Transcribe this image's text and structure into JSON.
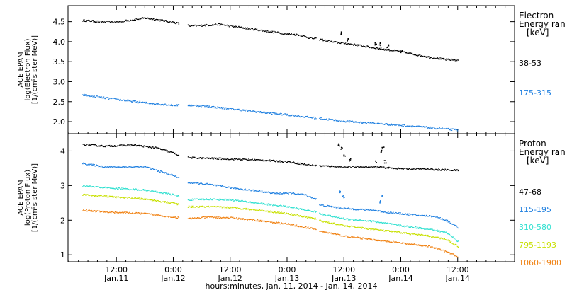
{
  "chart_data": [
    {
      "type": "scatter",
      "panel": "electron",
      "ylabel": [
        "ACE EPAM",
        "log(Electron Flux)",
        "[1/(cm²s ster MeV)]"
      ],
      "ylim": [
        1.7,
        4.9
      ],
      "yticks": [
        2.0,
        2.5,
        3.0,
        3.5,
        4.0,
        4.5
      ],
      "legend_title": [
        "Electron",
        "Energy ran",
        "[keV]"
      ],
      "series": [
        {
          "name": "38-53",
          "color": "#000000",
          "points": [
            [
              -0.6,
              4.54
            ],
            [
              -0.2,
              4.5
            ],
            [
              0,
              4.5
            ],
            [
              0.5,
              4.6
            ],
            [
              0.75,
              4.55
            ],
            [
              1.0,
              4.49
            ],
            [
              1.3,
              4.4
            ],
            [
              1.55,
              4.42
            ],
            [
              1.8,
              4.44
            ],
            [
              2.2,
              4.36
            ],
            [
              2.6,
              4.28
            ],
            [
              3.0,
              4.2
            ],
            [
              3.2,
              4.18
            ],
            [
              3.4,
              4.1
            ],
            [
              3.6,
              4.06
            ],
            [
              3.8,
              4.0
            ],
            [
              4.0,
              3.97
            ],
            [
              4.2,
              3.93
            ],
            [
              4.5,
              3.86
            ],
            [
              4.8,
              3.8
            ],
            [
              5.0,
              3.76
            ],
            [
              5.2,
              3.7
            ],
            [
              5.5,
              3.62
            ],
            [
              5.8,
              3.56
            ],
            [
              6.0,
              3.55
            ]
          ],
          "gaps": [
            [
              1.1,
              1.25
            ],
            [
              3.5,
              3.56
            ]
          ],
          "spikes": [
            [
              3.95,
              4.22
            ],
            [
              4.05,
              4.05
            ],
            [
              4.55,
              3.97
            ],
            [
              4.62,
              3.95
            ],
            [
              4.76,
              3.9
            ],
            [
              5.0,
              3.75
            ]
          ]
        },
        {
          "name": "175-315",
          "color": "#2080e0",
          "points": [
            [
              -0.6,
              2.68
            ],
            [
              -0.2,
              2.6
            ],
            [
              0.5,
              2.48
            ],
            [
              1.0,
              2.42
            ],
            [
              1.3,
              2.42
            ],
            [
              1.55,
              2.4
            ],
            [
              2.0,
              2.33
            ],
            [
              2.5,
              2.25
            ],
            [
              3.0,
              2.18
            ],
            [
              3.5,
              2.1
            ],
            [
              4.0,
              2.02
            ],
            [
              4.5,
              1.97
            ],
            [
              5.0,
              1.92
            ],
            [
              5.5,
              1.86
            ],
            [
              6.0,
              1.8
            ]
          ],
          "gaps": [
            [
              1.1,
              1.25
            ],
            [
              3.5,
              3.56
            ]
          ]
        }
      ]
    },
    {
      "type": "scatter",
      "panel": "proton",
      "ylabel": [
        "ACE EPAM",
        "log(Proton Flux)",
        "[1/(cm²s ster MeV)]"
      ],
      "ylim": [
        0.8,
        4.5
      ],
      "yticks": [
        1,
        2,
        3,
        4
      ],
      "legend_title": [
        "Proton",
        "Energy ran",
        "[keV]"
      ],
      "series": [
        {
          "name": "47-68",
          "color": "#000000",
          "points": [
            [
              -0.6,
              4.2
            ],
            [
              -0.2,
              4.15
            ],
            [
              0.3,
              4.18
            ],
            [
              0.7,
              4.1
            ],
            [
              1.0,
              3.95
            ],
            [
              1.1,
              3.88
            ],
            [
              1.25,
              3.82
            ],
            [
              1.6,
              3.8
            ],
            [
              2.0,
              3.78
            ],
            [
              2.5,
              3.75
            ],
            [
              3.0,
              3.7
            ],
            [
              3.4,
              3.6
            ],
            [
              3.56,
              3.58
            ],
            [
              3.8,
              3.57
            ],
            [
              4.0,
              3.55
            ],
            [
              4.5,
              3.55
            ],
            [
              5.0,
              3.5
            ],
            [
              5.5,
              3.48
            ],
            [
              6.0,
              3.45
            ]
          ],
          "gaps": [
            [
              1.1,
              1.25
            ],
            [
              3.5,
              3.56
            ]
          ],
          "spikes": [
            [
              3.9,
              4.2
            ],
            [
              3.95,
              4.1
            ],
            [
              4.0,
              3.9
            ],
            [
              4.1,
              3.75
            ],
            [
              4.55,
              3.7
            ],
            [
              4.65,
              4.0
            ],
            [
              4.68,
              4.1
            ],
            [
              4.72,
              3.7
            ]
          ]
        },
        {
          "name": "115-195",
          "color": "#2080e0",
          "points": [
            [
              -0.6,
              3.65
            ],
            [
              -0.2,
              3.55
            ],
            [
              0.5,
              3.55
            ],
            [
              1.0,
              3.3
            ],
            [
              1.25,
              3.1
            ],
            [
              1.6,
              3.05
            ],
            [
              2.0,
              2.95
            ],
            [
              2.5,
              2.85
            ],
            [
              2.8,
              2.78
            ],
            [
              3.0,
              2.8
            ],
            [
              3.3,
              2.75
            ],
            [
              3.5,
              2.62
            ],
            [
              3.56,
              2.45
            ],
            [
              4.0,
              2.35
            ],
            [
              4.5,
              2.3
            ],
            [
              4.7,
              2.25
            ],
            [
              5.0,
              2.2
            ],
            [
              5.3,
              2.15
            ],
            [
              5.6,
              2.12
            ],
            [
              5.8,
              2.0
            ],
            [
              6.0,
              1.8
            ]
          ],
          "gaps": [
            [
              1.1,
              1.25
            ],
            [
              3.5,
              3.56
            ]
          ],
          "spikes": [
            [
              3.92,
              2.85
            ],
            [
              3.98,
              2.7
            ],
            [
              4.62,
              2.55
            ],
            [
              4.66,
              2.7
            ]
          ]
        },
        {
          "name": "310-580",
          "color": "#30e0d0",
          "points": [
            [
              -0.6,
              3.0
            ],
            [
              -0.2,
              2.95
            ],
            [
              0.5,
              2.88
            ],
            [
              1.0,
              2.75
            ],
            [
              1.25,
              2.6
            ],
            [
              1.6,
              2.62
            ],
            [
              2.0,
              2.6
            ],
            [
              2.5,
              2.5
            ],
            [
              3.0,
              2.4
            ],
            [
              3.5,
              2.25
            ],
            [
              3.56,
              2.2
            ],
            [
              4.0,
              2.05
            ],
            [
              4.5,
              1.98
            ],
            [
              5.0,
              1.85
            ],
            [
              5.5,
              1.75
            ],
            [
              5.8,
              1.65
            ],
            [
              6.0,
              1.4
            ]
          ],
          "gaps": [
            [
              1.1,
              1.25
            ],
            [
              3.5,
              3.56
            ]
          ]
        },
        {
          "name": "795-1193",
          "color": "#c8e000",
          "points": [
            [
              -0.6,
              2.75
            ],
            [
              -0.2,
              2.7
            ],
            [
              0.5,
              2.62
            ],
            [
              1.0,
              2.5
            ],
            [
              1.25,
              2.4
            ],
            [
              1.6,
              2.4
            ],
            [
              2.0,
              2.38
            ],
            [
              2.5,
              2.3
            ],
            [
              3.0,
              2.2
            ],
            [
              3.5,
              2.05
            ],
            [
              3.56,
              2.0
            ],
            [
              4.0,
              1.85
            ],
            [
              4.5,
              1.75
            ],
            [
              5.0,
              1.65
            ],
            [
              5.5,
              1.55
            ],
            [
              5.8,
              1.45
            ],
            [
              6.0,
              1.25
            ]
          ],
          "gaps": [
            [
              1.1,
              1.25
            ],
            [
              3.5,
              3.56
            ]
          ]
        },
        {
          "name": "1060-1900",
          "color": "#f08010",
          "points": [
            [
              -0.6,
              2.3
            ],
            [
              -0.2,
              2.25
            ],
            [
              0.5,
              2.2
            ],
            [
              1.0,
              2.1
            ],
            [
              1.25,
              2.05
            ],
            [
              1.6,
              2.1
            ],
            [
              2.0,
              2.08
            ],
            [
              2.5,
              2.0
            ],
            [
              3.0,
              1.9
            ],
            [
              3.5,
              1.75
            ],
            [
              3.56,
              1.7
            ],
            [
              4.0,
              1.55
            ],
            [
              4.5,
              1.45
            ],
            [
              5.0,
              1.35
            ],
            [
              5.5,
              1.25
            ],
            [
              5.8,
              1.1
            ],
            [
              6.0,
              0.95
            ]
          ],
          "gaps": [
            [
              1.1,
              1.25
            ],
            [
              3.5,
              3.56
            ]
          ]
        }
      ]
    }
  ],
  "x_axis": {
    "xlim": [
      -0.85,
      7.0
    ],
    "ticks": [
      {
        "x": 0,
        "time": "12:00",
        "date": "Jan.11"
      },
      {
        "x": 1,
        "time": "0:00",
        "date": "Jan.12"
      },
      {
        "x": 2,
        "time": "12:00",
        "date": "Jan.12"
      },
      {
        "x": 3,
        "time": "0:00",
        "date": "Jan.13"
      },
      {
        "x": 4,
        "time": "12:00",
        "date": "Jan.13"
      },
      {
        "x": 5,
        "time": "0:00",
        "date": "Jan.14"
      },
      {
        "x": 6,
        "time": "12:00",
        "date": "Jan.14"
      }
    ],
    "label": "hours:minutes, Jan. 11, 2014 - Jan. 14, 2014"
  }
}
